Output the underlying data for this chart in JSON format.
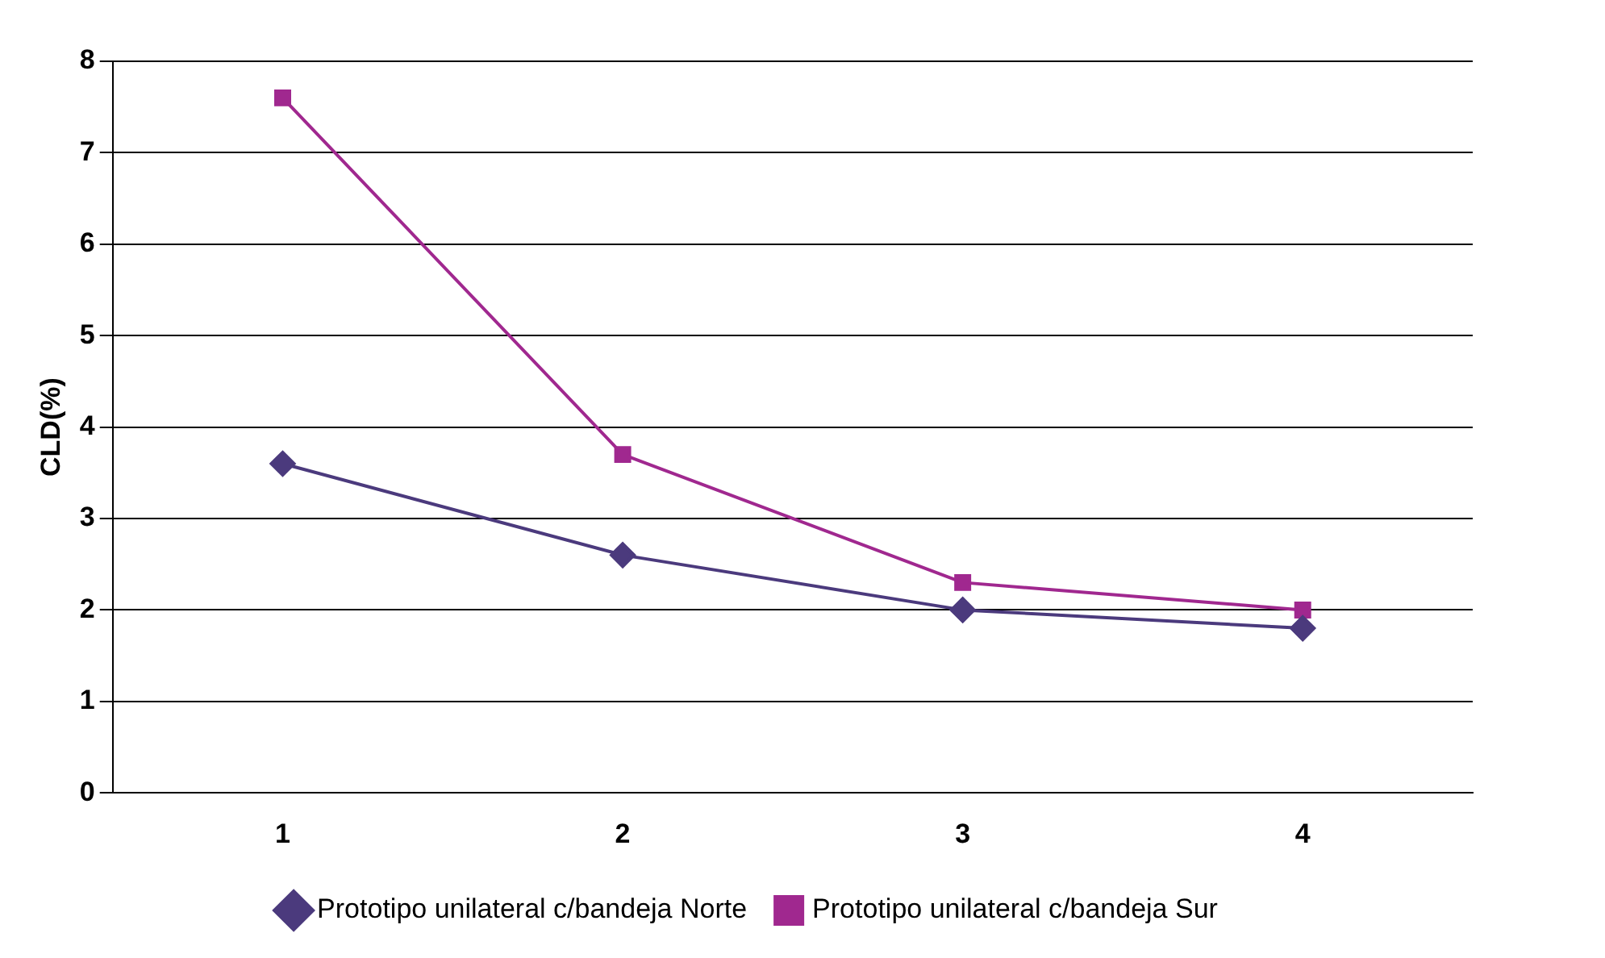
{
  "chart_data": {
    "type": "line",
    "ylabel": "CLD(%)",
    "categories": [
      "1",
      "2",
      "3",
      "4"
    ],
    "series": [
      {
        "name": "Prototipo unilateral c/bandeja Norte",
        "color": "#4b3a7d",
        "marker": "diamond",
        "values": [
          3.6,
          2.6,
          2.0,
          1.8
        ]
      },
      {
        "name": "Prototipo unilateral c/bandeja Sur",
        "color": "#a0288f",
        "marker": "square",
        "values": [
          7.6,
          3.7,
          2.3,
          2.0
        ]
      }
    ],
    "ylim": [
      0,
      8
    ],
    "yticks": [
      0,
      1,
      2,
      3,
      4,
      5,
      6,
      7,
      8
    ],
    "grid": "y",
    "legend": "bottom"
  }
}
